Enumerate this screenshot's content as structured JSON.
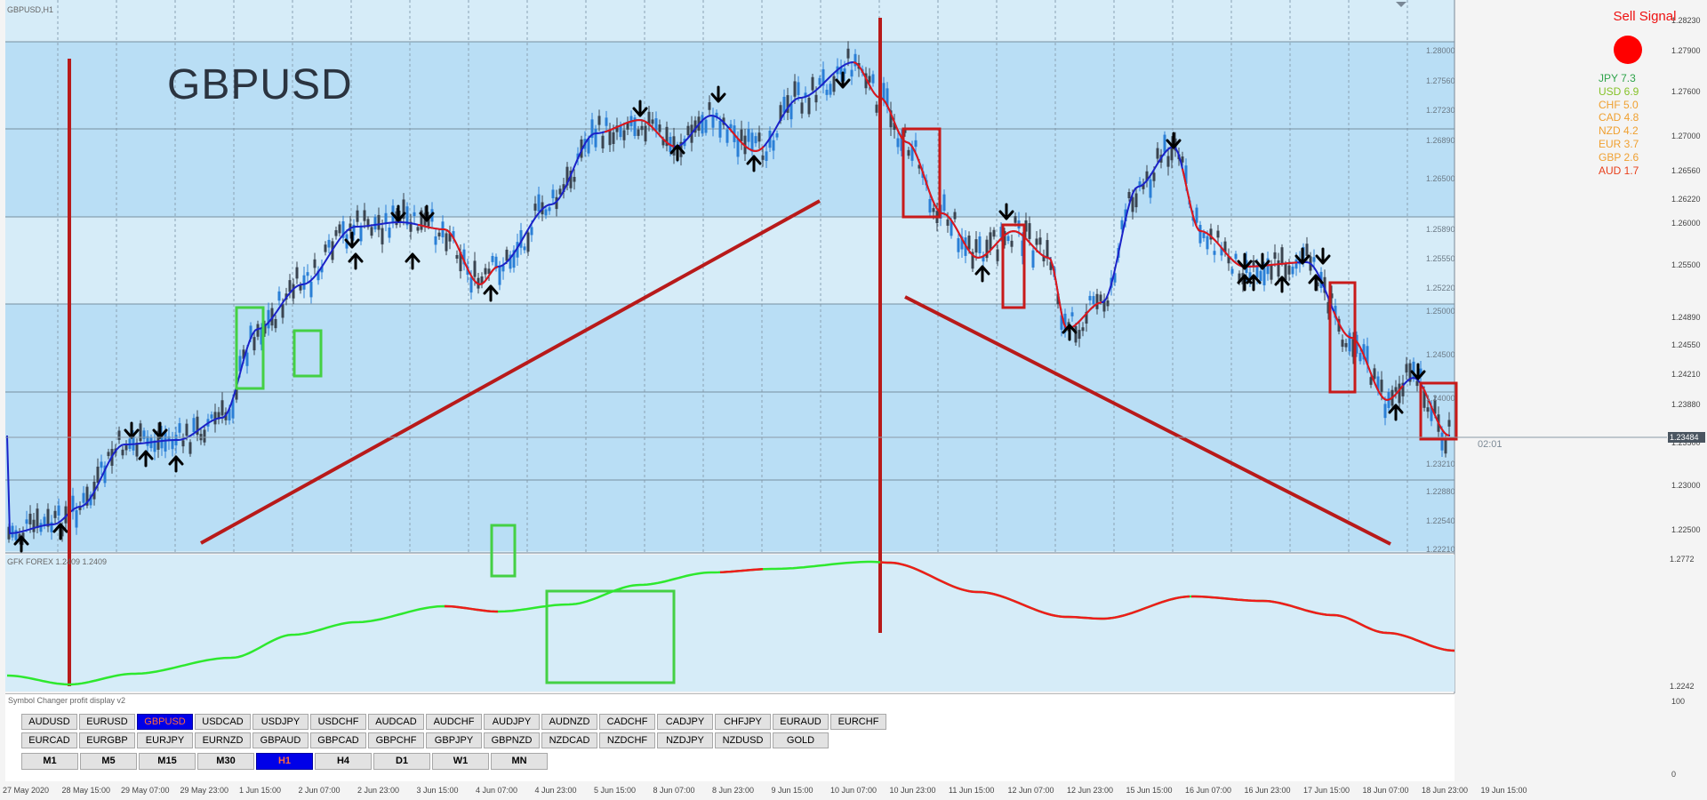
{
  "window": {
    "title": "GBPUSD,H1"
  },
  "chart": {
    "symbol_watermark": "GBPUSD",
    "price_axis": [
      "1.28230",
      "1.28000",
      "1.27900",
      "1.27560",
      "1.27600",
      "1.27230",
      "1.27000",
      "1.26890",
      "1.26560",
      "1.26500",
      "1.26220",
      "1.25890",
      "1.26000",
      "1.25550",
      "1.25500",
      "1.25220",
      "1.24890",
      "1.25000",
      "1.24550",
      "1.24500",
      "1.24210",
      "1.24000",
      "1.23880",
      "1.23210",
      "1.23500",
      "1.22880",
      "1.23000",
      "1.22540",
      "1.22500",
      "1.22210"
    ],
    "current_price": "1.23484",
    "candle_countdown": "02:01",
    "time_axis": [
      "27 May 2020",
      "28 May 15:00",
      "29 May 07:00",
      "29 May 23:00",
      "1 Jun 15:00",
      "2 Jun 07:00",
      "2 Jun 23:00",
      "3 Jun 15:00",
      "4 Jun 07:00",
      "4 Jun 23:00",
      "5 Jun 15:00",
      "8 Jun 07:00",
      "8 Jun 23:00",
      "9 Jun 15:00",
      "10 Jun 07:00",
      "10 Jun 23:00",
      "11 Jun 15:00",
      "12 Jun 07:00",
      "12 Jun 23:00",
      "15 Jun 15:00",
      "16 Jun 07:00",
      "16 Jun 23:00",
      "17 Jun 15:00",
      "18 Jun 07:00",
      "18 Jun 23:00",
      "19 Jun 15:00"
    ]
  },
  "indicator": {
    "label": "GFK FOREX 1.2409 1.2409",
    "axis_top": "1.2772",
    "axis_bottom": "1.2242",
    "panel_axis_top": "100",
    "panel_axis_bottom": "0"
  },
  "signal": {
    "label": "Sell Signal",
    "status_color": "#ff0000"
  },
  "currency_strength": [
    {
      "name": "JPY",
      "value": "7.3",
      "color": "#2ea34a"
    },
    {
      "name": "USD",
      "value": "6.9",
      "color": "#86c229"
    },
    {
      "name": "CHF",
      "value": "5.0",
      "color": "#f0a030"
    },
    {
      "name": "CAD",
      "value": "4.8",
      "color": "#f0a030"
    },
    {
      "name": "NZD",
      "value": "4.2",
      "color": "#f0a030"
    },
    {
      "name": "EUR",
      "value": "3.7",
      "color": "#f0a030"
    },
    {
      "name": "GBP",
      "value": "2.6",
      "color": "#f0a030"
    },
    {
      "name": "AUD",
      "value": "1.7",
      "color": "#e8401c"
    }
  ],
  "symbol_panel": {
    "title": "Symbol Changer profit display v2",
    "row1": [
      "AUDUSD",
      "EURUSD",
      "GBPUSD",
      "USDCAD",
      "USDJPY",
      "USDCHF",
      "AUDCAD",
      "AUDCHF",
      "AUDJPY",
      "AUDNZD",
      "CADCHF",
      "CADJPY",
      "CHFJPY",
      "EURAUD",
      "EURCHF"
    ],
    "row2": [
      "EURCAD",
      "EURGBP",
      "EURJPY",
      "EURNZD",
      "GBPAUD",
      "GBPCAD",
      "GBPCHF",
      "GBPJPY",
      "GBPNZD",
      "NZDCAD",
      "NZDCHF",
      "NZDJPY",
      "NZDUSD",
      "GOLD"
    ],
    "timeframes": [
      "M1",
      "M5",
      "M15",
      "M30",
      "H1",
      "H4",
      "D1",
      "W1",
      "MN"
    ],
    "active_symbol": "GBPUSD",
    "active_timeframe": "H1"
  }
}
